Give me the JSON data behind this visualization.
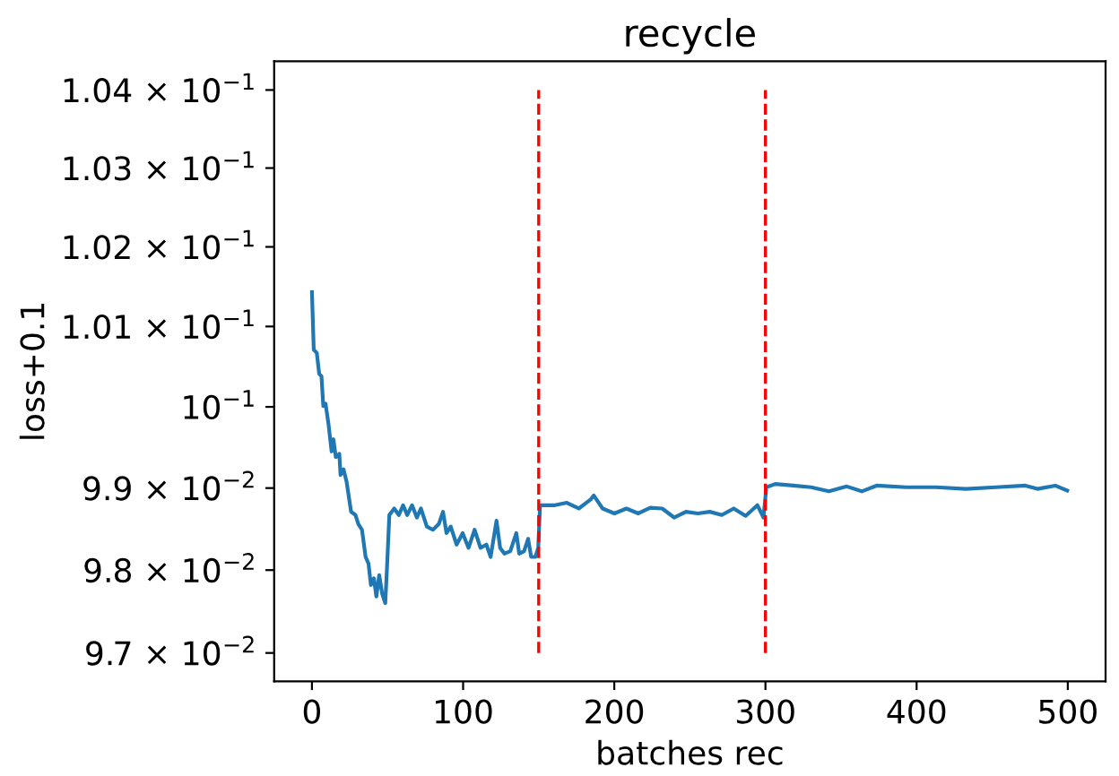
{
  "chart_data": {
    "type": "line",
    "title": "recycle",
    "xlabel": "batches rec",
    "ylabel": "loss+0.1",
    "log": "y",
    "grid": false,
    "legend": false,
    "xlim": [
      -25,
      525
    ],
    "xticks": [
      0,
      100,
      200,
      300,
      400,
      500
    ],
    "ylim": [
      0.09666,
      0.10437
    ],
    "yticks": [
      {
        "value": 0.097,
        "label": "9.7 × 10$^{−2}$"
      },
      {
        "value": 0.098,
        "label": "9.8 × 10$^{−2}$"
      },
      {
        "value": 0.099,
        "label": "9.9 × 10$^{−2}$"
      },
      {
        "value": 0.1,
        "label": "10$^{−1}$"
      },
      {
        "value": 0.101,
        "label": "1.01 × 10$^{−1}$"
      },
      {
        "value": 0.102,
        "label": "1.02 × 10$^{−1}$"
      },
      {
        "value": 0.103,
        "label": "1.03 × 10$^{−1}$"
      },
      {
        "value": 0.104,
        "label": "1.04 × 10$^{−1}$"
      }
    ],
    "ref_lines": [
      {
        "axis": "x",
        "value": 150,
        "color": "#ff0000",
        "line_style": "dashed"
      },
      {
        "axis": "x",
        "value": 300,
        "color": "#ff0000",
        "line_style": "dashed"
      }
    ],
    "series": [
      {
        "color": "#1f77b4",
        "x": [
          0,
          1.2,
          3.2,
          4.8,
          6.3,
          7.5,
          9.0,
          11.0,
          13.0,
          14.2,
          15.8,
          18.1,
          18.9,
          20.9,
          22.9,
          25.9,
          28.8,
          30.7,
          33.1,
          35.5,
          37.4,
          39.0,
          41.0,
          42.6,
          44.5,
          46.5,
          48.5,
          49.6,
          51.2,
          54.4,
          57.5,
          60.3,
          63.0,
          66.2,
          69.4,
          72.1,
          76.0,
          80.0,
          83.9,
          86.7,
          89.0,
          91.8,
          95.7,
          99.7,
          103.6,
          107.6,
          111.5,
          115.4,
          118.2,
          122.1,
          124.5,
          127.3,
          131.2,
          135.2,
          137.1,
          140.3,
          143.0,
          145.0,
          147.8,
          149.7,
          150.9,
          160.8,
          168.6,
          176.5,
          184.4,
          186.4,
          192.3,
          200.1,
          208.0,
          215.9,
          223.8,
          231.7,
          239.6,
          247.4,
          255.3,
          263.2,
          271.1,
          279.0,
          286.9,
          294.7,
          298.7,
          300.6,
          306.5,
          318.4,
          330.2,
          342.0,
          353.8,
          363.7,
          373.5,
          393.2,
          412.9,
          432.6,
          452.3,
          472.0,
          479.9,
          491.7,
          499.6
        ],
        "values": [
          0.10143,
          0.10071,
          0.10067,
          0.10041,
          0.10038,
          0.10001,
          0.10004,
          0.09978,
          0.09945,
          0.0996,
          0.09938,
          0.09942,
          0.09916,
          0.09923,
          0.09908,
          0.09871,
          0.09867,
          0.09856,
          0.09849,
          0.09816,
          0.09808,
          0.09782,
          0.0979,
          0.09768,
          0.09794,
          0.09771,
          0.0976,
          0.09801,
          0.09867,
          0.09875,
          0.09867,
          0.09879,
          0.09867,
          0.09879,
          0.09864,
          0.09875,
          0.09853,
          0.09849,
          0.09856,
          0.09871,
          0.09845,
          0.09853,
          0.09831,
          0.09845,
          0.09827,
          0.09849,
          0.09827,
          0.09831,
          0.09816,
          0.0986,
          0.09827,
          0.0982,
          0.09823,
          0.09845,
          0.0982,
          0.09823,
          0.09838,
          0.09816,
          0.09816,
          0.09827,
          0.09879,
          0.09879,
          0.09882,
          0.09875,
          0.09886,
          0.09891,
          0.09875,
          0.09869,
          0.09875,
          0.09869,
          0.09876,
          0.09875,
          0.09864,
          0.09871,
          0.09869,
          0.09871,
          0.09867,
          0.09875,
          0.09866,
          0.09879,
          0.09864,
          0.09901,
          0.09905,
          0.09903,
          0.09901,
          0.09896,
          0.09902,
          0.09896,
          0.09903,
          0.09901,
          0.09901,
          0.09899,
          0.09901,
          0.09903,
          0.09899,
          0.09903,
          0.09897
        ]
      }
    ]
  }
}
